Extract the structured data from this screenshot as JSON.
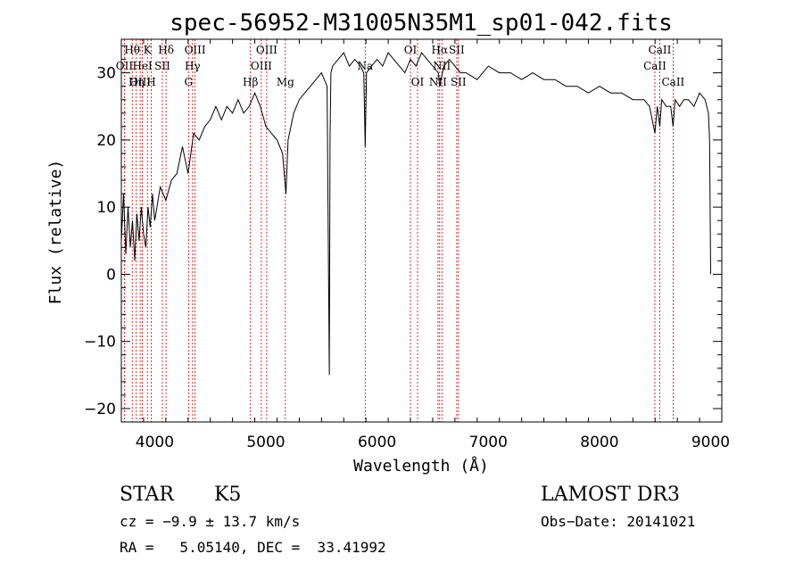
{
  "chart_data": {
    "type": "line",
    "title": "spec-56952-M31005N35M1_sp01-042.fits",
    "xlabel": "Wavelength (Å)",
    "ylabel": "Flux (relative)",
    "xlim": [
      3700,
      9100
    ],
    "ylim": [
      -22,
      35
    ],
    "x_ticks": [
      4000,
      5000,
      6000,
      7000,
      8000,
      9000
    ],
    "x_tick_labels": [
      "4000",
      "5000",
      "6000",
      "7000",
      "8000",
      "9000"
    ],
    "y_ticks": [
      -20,
      -10,
      0,
      10,
      20,
      30
    ],
    "y_tick_labels": [
      "−20",
      "−10",
      "0",
      "10",
      "20",
      "30"
    ],
    "series": [
      {
        "name": "spectrum",
        "x": [
          3700,
          3720,
          3740,
          3760,
          3780,
          3800,
          3820,
          3840,
          3860,
          3880,
          3900,
          3920,
          3940,
          3960,
          3980,
          4000,
          4050,
          4100,
          4150,
          4200,
          4250,
          4300,
          4350,
          4400,
          4450,
          4500,
          4550,
          4600,
          4650,
          4700,
          4750,
          4800,
          4850,
          4900,
          4950,
          5000,
          5050,
          5100,
          5150,
          5180,
          5200,
          5250,
          5300,
          5350,
          5400,
          5450,
          5500,
          5550,
          5570,
          5577,
          5585,
          5600,
          5650,
          5700,
          5750,
          5800,
          5850,
          5880,
          5893,
          5905,
          5950,
          6000,
          6050,
          6100,
          6150,
          6200,
          6250,
          6300,
          6350,
          6400,
          6450,
          6500,
          6550,
          6563,
          6600,
          6650,
          6700,
          6750,
          6800,
          6900,
          7000,
          7100,
          7200,
          7300,
          7400,
          7500,
          7600,
          7700,
          7800,
          7900,
          8000,
          8100,
          8200,
          8300,
          8400,
          8450,
          8498,
          8520,
          8542,
          8560,
          8600,
          8640,
          8662,
          8680,
          8720,
          8760,
          8800,
          8850,
          8900,
          8950,
          8980,
          8990,
          9000
        ],
        "y": [
          5,
          12,
          3,
          10,
          4,
          8,
          2,
          9,
          5,
          10,
          6,
          4,
          10,
          7,
          12,
          8,
          13,
          11,
          14,
          15,
          19,
          15,
          21,
          20,
          22,
          23,
          25,
          23,
          25,
          24,
          26,
          24,
          25,
          27,
          25,
          22,
          21,
          20,
          18,
          12,
          20,
          24,
          26,
          27,
          28,
          29,
          30,
          28,
          -15,
          20,
          30,
          31,
          32,
          33,
          31,
          32,
          31,
          30,
          19,
          30,
          31,
          32,
          31,
          33,
          32,
          31,
          30,
          32,
          31,
          33,
          32,
          31,
          30,
          28,
          31,
          32,
          31,
          30,
          30,
          29,
          31,
          30,
          30,
          29,
          30,
          29,
          29,
          28,
          28,
          27,
          28,
          27,
          27,
          26,
          26,
          25,
          21,
          25,
          22,
          26,
          25,
          25,
          22,
          26,
          25,
          26,
          26,
          25,
          27,
          26,
          24,
          20,
          0
        ]
      }
    ],
    "spectral_lines": [
      {
        "label": "Hθ",
        "x": 3798,
        "row": 0
      },
      {
        "label": "OII",
        "x": 3727,
        "row": 1
      },
      {
        "label": "OIII",
        "x": 3869,
        "row": 2
      },
      {
        "label": "Hη",
        "x": 3835,
        "row": 2
      },
      {
        "label": "K",
        "x": 3934,
        "row": 0
      },
      {
        "label": "H",
        "x": 3969,
        "row": 2
      },
      {
        "label": "HeI",
        "x": 3889,
        "row": 1
      },
      {
        "label": "SII",
        "x": 4069,
        "row": 1
      },
      {
        "label": "Hδ",
        "x": 4102,
        "row": 0
      },
      {
        "label": "OIII",
        "x": 4363,
        "row": 0
      },
      {
        "label": "Hγ",
        "x": 4340,
        "row": 1
      },
      {
        "label": "G",
        "x": 4304,
        "row": 2
      },
      {
        "label": "Hβ",
        "x": 4861,
        "row": 2
      },
      {
        "label": "OIII",
        "x": 4959,
        "row": 1
      },
      {
        "label": "OIII",
        "x": 5007,
        "row": 0
      },
      {
        "label": "Mg",
        "x": 5175,
        "row": 2
      },
      {
        "label": "Na",
        "x": 5893,
        "row": 1
      },
      {
        "label": "OI",
        "x": 6300,
        "row": 0
      },
      {
        "label": "OI",
        "x": 6364,
        "row": 2
      },
      {
        "label": "Hα",
        "x": 6563,
        "row": 0
      },
      {
        "label": "NII",
        "x": 6583,
        "row": 1
      },
      {
        "label": "NII",
        "x": 6548,
        "row": 2
      },
      {
        "label": "SII",
        "x": 6716,
        "row": 0
      },
      {
        "label": "SII",
        "x": 6731,
        "row": 2
      },
      {
        "label": "CaII",
        "x": 8542,
        "row": 0
      },
      {
        "label": "CaII",
        "x": 8498,
        "row": 1
      },
      {
        "label": "CaII",
        "x": 8662,
        "row": 2
      }
    ]
  },
  "info": {
    "object_class": "STAR",
    "subclass": "K5",
    "survey": "LAMOST DR3",
    "cz": "cz = −9.9 ± 13.7 km/s",
    "obs_date": "Obs−Date: 20141021",
    "coords": "RA =   5.05140, DEC =  33.41992"
  },
  "colors": {
    "line": "#000000",
    "marker_lines": "#cc0000",
    "frame": "#000000"
  }
}
